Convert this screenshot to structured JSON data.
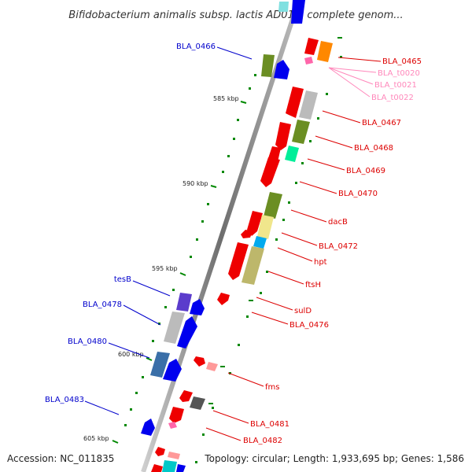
{
  "title": "Bifidobacterium animalis subsp. lactis AD011, complete genom...",
  "footer": {
    "accession": "Accession: NC_011835",
    "topology": "Topology: circular; Length: 1,933,695 bp; Genes: 1,586"
  },
  "scale_labels": [
    "585 kbp",
    "590 kbp",
    "595 kbp",
    "600 kbp",
    "605 kbp"
  ],
  "colors": {
    "backbone": "#8c8c8c",
    "forward_label": "#0000cc",
    "reverse_label": "#dd0000",
    "trna_label": "#ff88bb",
    "tick": "#008800"
  },
  "forward_labels": [
    "BLA_0466",
    "tesB",
    "BLA_0478",
    "BLA_0480",
    "BLA_0483"
  ],
  "reverse_labels": [
    "BLA_0465",
    "BLA_0467",
    "BLA_0468",
    "BLA_0469",
    "BLA_0470",
    "dacB",
    "BLA_0472",
    "hpt",
    "ftsH",
    "sulD",
    "BLA_0476",
    "fms",
    "BLA_0481",
    "BLA_0482"
  ],
  "trna_labels": [
    "BLA_t0020",
    "BLA_t0021",
    "BLA_t0022"
  ]
}
